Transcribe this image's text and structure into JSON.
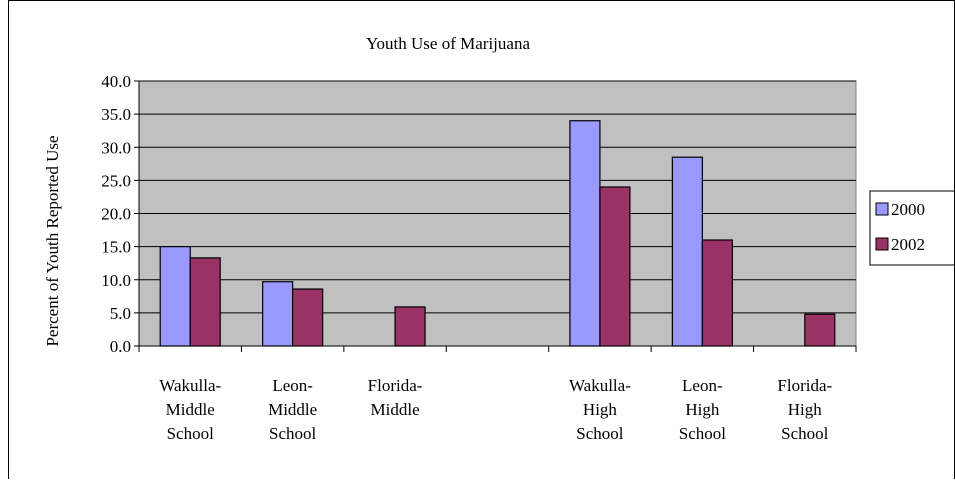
{
  "chart_data": {
    "type": "bar",
    "title": "Youth Use of Marijuana",
    "xlabel": "",
    "ylabel": "Percent of Youth Reported Use",
    "ylim": [
      0,
      40
    ],
    "yticks": [
      "0.0",
      "5.0",
      "10.0",
      "15.0",
      "20.0",
      "25.0",
      "30.0",
      "35.0",
      "40.0"
    ],
    "categories": [
      [
        "Wakulla-",
        "Middle",
        "School"
      ],
      [
        "Leon-",
        "Middle",
        "School"
      ],
      [
        "Florida-",
        "Middle"
      ],
      [],
      [
        "Wakulla-",
        "High",
        "School"
      ],
      [
        "Leon-",
        "High",
        "School"
      ],
      [
        "Florida-",
        "High",
        "School"
      ]
    ],
    "series": [
      {
        "name": "2000",
        "color": "#9999ff",
        "values": [
          15.0,
          9.7,
          null,
          null,
          34.0,
          28.5,
          null
        ]
      },
      {
        "name": "2002",
        "color": "#993366",
        "values": [
          13.3,
          8.6,
          5.9,
          null,
          24.0,
          16.0,
          4.8
        ]
      }
    ],
    "plot_background": "#c0c0c0",
    "grid": true,
    "legend_position": "right"
  }
}
